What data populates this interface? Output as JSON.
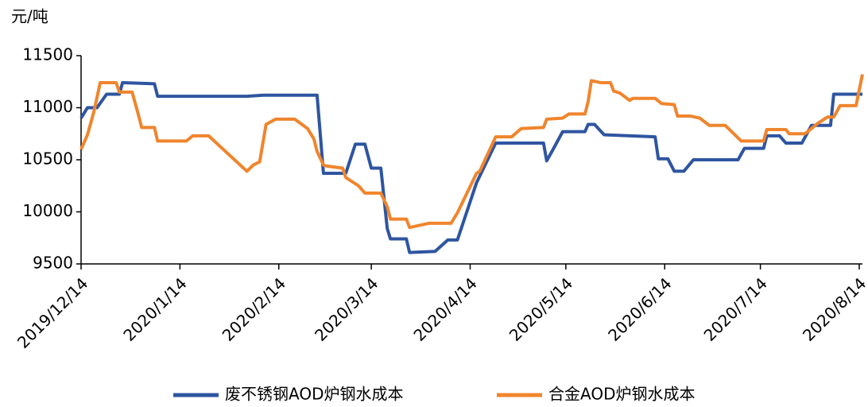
{
  "chart_data": {
    "type": "line",
    "ylabel": "元/吨",
    "xlim": [
      "2019/12/14",
      "2020/8/15"
    ],
    "xticks": [
      "2019/12/14",
      "2020/1/14",
      "2020/2/14",
      "2020/3/14",
      "2020/4/14",
      "2020/5/14",
      "2020/6/14",
      "2020/7/14",
      "2020/8/14"
    ],
    "ylim": [
      9500,
      11500
    ],
    "yticks": [
      9500,
      10000,
      10500,
      11000,
      11500
    ],
    "legend": "bottom",
    "series": [
      {
        "name": "废不锈钢AOD炉钢水成本",
        "color": "#2f55a0",
        "x": [
          "2019/12/14",
          "2019/12/16",
          "2019/12/19",
          "2019/12/22",
          "2019/12/26",
          "2019/12/27",
          "2020/1/6",
          "2020/1/7",
          "2020/2/4",
          "2020/2/9",
          "2020/2/26",
          "2020/2/28",
          "2020/3/6",
          "2020/3/9",
          "2020/3/12",
          "2020/3/14",
          "2020/3/17",
          "2020/3/19",
          "2020/3/20",
          "2020/3/25",
          "2020/3/26",
          "2020/4/3",
          "2020/4/7",
          "2020/4/10",
          "2020/4/16",
          "2020/4/22",
          "2020/5/7",
          "2020/5/8",
          "2020/5/10",
          "2020/5/13",
          "2020/5/20",
          "2020/5/21",
          "2020/5/23",
          "2020/5/26",
          "2020/6/11",
          "2020/6/12",
          "2020/6/15",
          "2020/6/17",
          "2020/6/20",
          "2020/6/23",
          "2020/7/7",
          "2020/7/9",
          "2020/7/15",
          "2020/7/16",
          "2020/7/20",
          "2020/7/22",
          "2020/7/27",
          "2020/7/30",
          "2020/8/5",
          "2020/8/6",
          "2020/8/15"
        ],
        "values": [
          10900,
          11000,
          11000,
          11130,
          11130,
          11240,
          11230,
          11110,
          11110,
          11120,
          11120,
          10370,
          10370,
          10650,
          10650,
          10420,
          10420,
          9840,
          9740,
          9740,
          9610,
          9620,
          9730,
          9730,
          10280,
          10660,
          10660,
          10490,
          10600,
          10770,
          10770,
          10840,
          10840,
          10740,
          10720,
          10510,
          10510,
          10390,
          10390,
          10500,
          10500,
          10610,
          10610,
          10730,
          10730,
          10660,
          10660,
          10830,
          10830,
          11130,
          11130
        ]
      },
      {
        "name": "合金AOD炉钢水成本",
        "color": "#f0852d",
        "x": [
          "2019/12/14",
          "2019/12/16",
          "2019/12/18",
          "2019/12/20",
          "2019/12/25",
          "2019/12/26",
          "2019/12/30",
          "2020/1/1",
          "2020/1/2",
          "2020/1/6",
          "2020/1/7",
          "2020/1/16",
          "2020/1/18",
          "2020/1/23",
          "2020/2/4",
          "2020/2/6",
          "2020/2/8",
          "2020/2/10",
          "2020/2/13",
          "2020/2/19",
          "2020/2/23",
          "2020/2/25",
          "2020/2/26",
          "2020/2/28",
          "2020/2/29",
          "2020/3/5",
          "2020/3/6",
          "2020/3/10",
          "2020/3/12",
          "2020/3/17",
          "2020/3/19",
          "2020/3/20",
          "2020/3/25",
          "2020/3/26",
          "2020/3/29",
          "2020/4/1",
          "2020/4/8",
          "2020/4/10",
          "2020/4/16",
          "2020/4/17",
          "2020/4/22",
          "2020/4/27",
          "2020/4/30",
          "2020/5/7",
          "2020/5/8",
          "2020/5/13",
          "2020/5/15",
          "2020/5/20",
          "2020/5/21",
          "2020/5/22",
          "2020/5/25",
          "2020/5/28",
          "2020/5/29",
          "2020/5/31",
          "2020/6/3",
          "2020/6/4",
          "2020/6/11",
          "2020/6/13",
          "2020/6/17",
          "2020/6/18",
          "2020/6/22",
          "2020/6/25",
          "2020/6/28",
          "2020/7/3",
          "2020/7/6",
          "2020/7/8",
          "2020/7/15",
          "2020/7/16",
          "2020/7/22",
          "2020/7/23",
          "2020/7/28",
          "2020/7/30",
          "2020/8/1",
          "2020/8/4",
          "2020/8/6",
          "2020/8/8",
          "2020/8/13",
          "2020/8/15"
        ],
        "values": [
          10600,
          10740,
          10960,
          11240,
          11240,
          11150,
          11150,
          10930,
          10810,
          10810,
          10680,
          10680,
          10730,
          10730,
          10390,
          10450,
          10480,
          10840,
          10890,
          10890,
          10800,
          10700,
          10580,
          10450,
          10440,
          10420,
          10330,
          10250,
          10180,
          10180,
          10050,
          9930,
          9930,
          9850,
          9870,
          9890,
          9890,
          9990,
          10370,
          10390,
          10720,
          10720,
          10800,
          10810,
          10890,
          10900,
          10940,
          10940,
          11060,
          11260,
          11240,
          11240,
          11160,
          11140,
          11070,
          11090,
          11090,
          11040,
          11030,
          10920,
          10920,
          10900,
          10830,
          10830,
          10740,
          10680,
          10680,
          10790,
          10790,
          10750,
          10750,
          10800,
          10850,
          10910,
          10910,
          11020,
          11020,
          11320
        ]
      }
    ]
  }
}
